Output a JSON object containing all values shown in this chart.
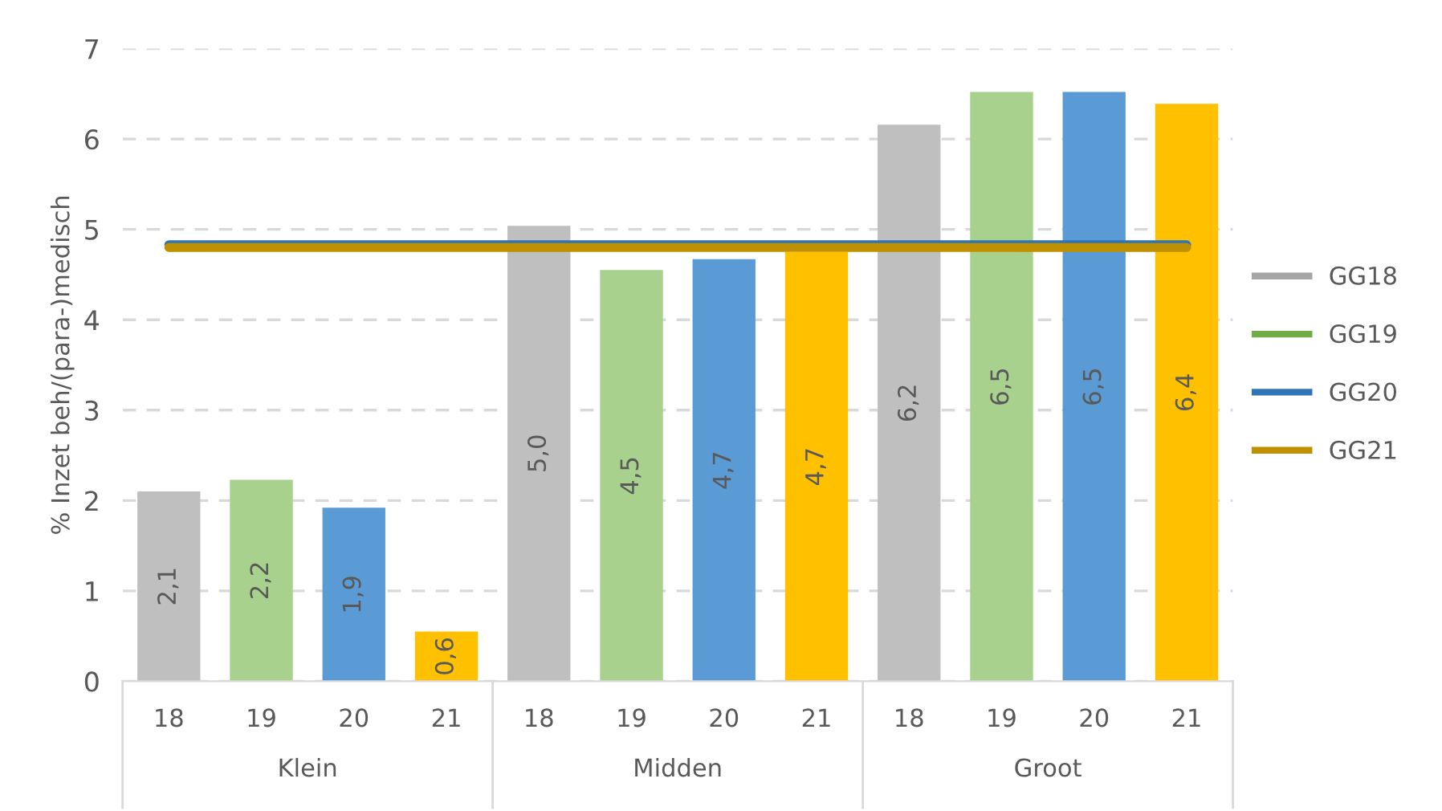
{
  "chart_data": {
    "type": "bar",
    "ylabel": "% Inzet beh/(para-)medisch",
    "categories": [
      "18",
      "19",
      "20",
      "21",
      "18",
      "19",
      "20",
      "21",
      "18",
      "19",
      "20",
      "21"
    ],
    "annotations": [
      "Klein",
      "Midden",
      "Groot"
    ],
    "series": [
      {
        "colors": [
          "#bfbfbf",
          "#a9d18e",
          "#5b9bd5",
          "#ffc000",
          "#bfbfbf",
          "#a9d18e",
          "#5b9bd5",
          "#ffc000",
          "#bfbfbf",
          "#a9d18e",
          "#5b9bd5",
          "#ffc000"
        ],
        "values": [
          2.1,
          2.23,
          1.92,
          0.55,
          5.04,
          4.55,
          4.67,
          4.75,
          6.16,
          6.52,
          6.52,
          6.39
        ],
        "value_labels": [
          "2,1",
          "2,2",
          "1,9",
          "0,6",
          "5,0",
          "4,5",
          "4,7",
          "4,7",
          "6,2",
          "6,5",
          "6,5",
          "6,4"
        ]
      },
      {
        "type": "line",
        "name": "GG18",
        "color": "#a5a5a5",
        "values": [
          null,
          null,
          null,
          null,
          null,
          null,
          null,
          null,
          null,
          null,
          null,
          null
        ]
      },
      {
        "type": "line",
        "name": "GG19",
        "color": "#70ad47",
        "values": [
          null,
          null,
          null,
          null,
          null,
          null,
          null,
          null,
          null,
          null,
          null,
          null
        ]
      },
      {
        "type": "line",
        "name": "GG20",
        "color": "#2e75b6",
        "values": [
          4.83,
          4.83,
          4.83,
          4.83,
          4.83,
          4.83,
          4.83,
          4.83,
          4.83,
          4.83,
          4.83,
          4.83
        ]
      },
      {
        "type": "line",
        "name": "GG21",
        "color": "#bf9000",
        "values": [
          4.8,
          4.8,
          4.8,
          4.8,
          4.8,
          4.8,
          4.8,
          4.8,
          4.8,
          4.8,
          4.8,
          4.8
        ]
      }
    ],
    "ylim": [
      0,
      7
    ],
    "yticks": [
      0,
      1,
      2,
      3,
      4,
      5,
      6,
      7
    ],
    "grid": "y",
    "legend": "right",
    "line_style": "solid",
    "marker": "none"
  }
}
